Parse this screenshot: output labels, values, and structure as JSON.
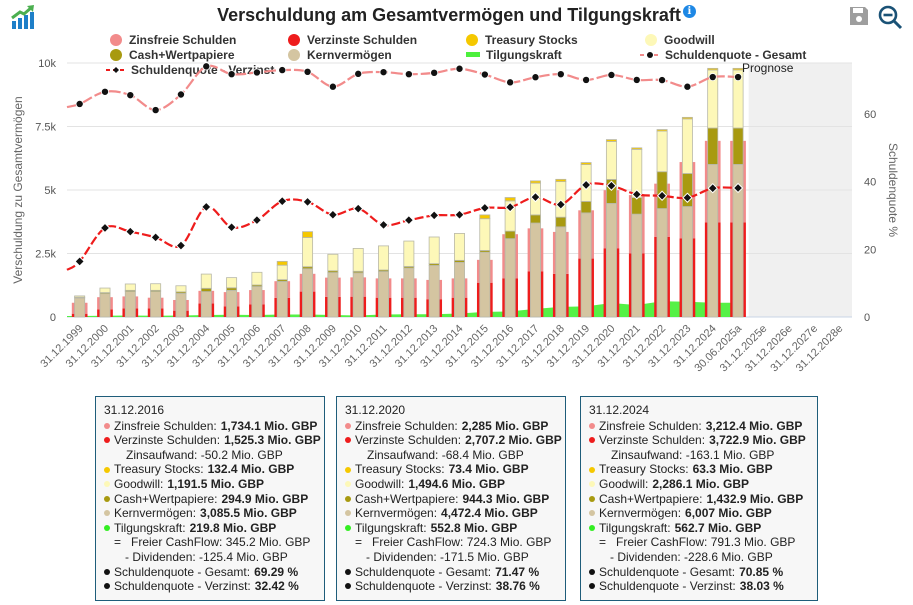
{
  "header": {
    "title": "Verschuldung am Gesamtvermögen und Tilgungskraft",
    "info_icon": "info-icon",
    "save_icon": "save-icon",
    "zoom_out_icon": "zoom-out-icon",
    "logo_icon": "chart-growth-logo-icon"
  },
  "legend": [
    {
      "label": "Zinsfreie Schulden",
      "color": "#f28b8b",
      "shape": "dot"
    },
    {
      "label": "Verzinste Schulden",
      "color": "#ee1c1c",
      "shape": "dot"
    },
    {
      "label": "Treasury Stocks",
      "color": "#f5c800",
      "shape": "dot"
    },
    {
      "label": "Goodwill",
      "color": "#fdf8b8",
      "shape": "dot"
    },
    {
      "label": "Cash+Wertpapiere",
      "color": "#a89a10",
      "shape": "dot"
    },
    {
      "label": "Kernvermögen",
      "color": "#d4c5a1",
      "shape": "dot"
    },
    {
      "label": "Tilgungskraft",
      "color": "#4cf03c",
      "shape": "bar"
    },
    {
      "label": "Schuldenquote - Gesamt",
      "color": "#f28b8b",
      "shape": "line"
    },
    {
      "label": "Schuldenquote - Verzinst",
      "color": "#ee1c1c",
      "shape": "line"
    }
  ],
  "chart_data": {
    "type": "bar",
    "title": "Verschuldung am Gesamtvermögen und Tilgungskraft",
    "xlabel": "",
    "ylabel": "Verschuldung zu Gesamtvermögen",
    "y2label": "Schuldenquote %",
    "ylim": [
      0,
      10000
    ],
    "y2lim": [
      0,
      75
    ],
    "yticks": [
      "0",
      "2.5k",
      "5k",
      "7.5k",
      "10k"
    ],
    "y2ticks": [
      "0",
      "20",
      "40",
      "60"
    ],
    "grid": true,
    "forecast_label": "Prognose",
    "categories": [
      "31.12.1999",
      "31.12.2000",
      "31.12.2001",
      "31.12.2002",
      "31.12.2003",
      "31.12.2004",
      "31.12.2005",
      "31.12.2006",
      "31.12.2007",
      "31.12.2008",
      "31.12.2009",
      "31.12.2010",
      "31.12.2011",
      "31.12.2012",
      "31.12.2013",
      "31.12.2014",
      "31.12.2015",
      "31.12.2016",
      "31.12.2017",
      "31.12.2018",
      "31.12.2019",
      "31.12.2020",
      "31.12.2021",
      "31.12.2022",
      "31.12.2023",
      "31.12.2024",
      "30.06.2025a",
      "31.12.2025e",
      "31.12.2026e",
      "31.12.2027e",
      "31.12.2028e"
    ],
    "series": [
      {
        "name": "Zinsfreie Schulden",
        "kind": "bar-left",
        "values": [
          430,
          480,
          470,
          420,
          420,
          500,
          560,
          560,
          660,
          700,
          760,
          760,
          760,
          760,
          760,
          760,
          900,
          1734.1,
          1690,
          1650,
          1900,
          2285,
          2300,
          2100,
          3000,
          3212.4,
          3212.4,
          null,
          null,
          null,
          null
        ]
      },
      {
        "name": "Verzinste Schulden",
        "kind": "bar-left-bottom",
        "values": [
          130,
          300,
          340,
          340,
          250,
          530,
          420,
          500,
          750,
          1000,
          790,
          800,
          760,
          760,
          700,
          760,
          1350,
          1525.3,
          1800,
          1700,
          2300,
          2707.2,
          2500,
          3150,
          3100,
          3722.9,
          3722.9,
          null,
          null,
          null,
          null
        ]
      },
      {
        "name": "Kernvermögen",
        "kind": "stack",
        "values": [
          750,
          920,
          1000,
          1000,
          930,
          1000,
          1050,
          1200,
          1400,
          1900,
          1750,
          1740,
          1790,
          1930,
          2030,
          2150,
          2550,
          3085.5,
          3700,
          3550,
          4100,
          4472.4,
          4050,
          4270,
          4350,
          6007,
          6007,
          null,
          null,
          null,
          null
        ]
      },
      {
        "name": "Cash+Wertpapiere",
        "kind": "stack",
        "values": [
          30,
          40,
          50,
          50,
          60,
          130,
          100,
          60,
          70,
          80,
          70,
          60,
          60,
          60,
          70,
          80,
          70,
          294.9,
          320,
          380,
          450,
          944.3,
          650,
          1450,
          1300,
          1432.9,
          1432.9,
          null,
          null,
          null,
          null
        ]
      },
      {
        "name": "Goodwill",
        "kind": "stack",
        "values": [
          50,
          180,
          250,
          260,
          240,
          560,
          400,
          500,
          570,
          1150,
          650,
          900,
          950,
          1000,
          1050,
          1060,
          1250,
          1191.5,
          1250,
          1400,
          1450,
          1494.6,
          1900,
          1600,
          2150,
          2286.1,
          2286.1,
          null,
          null,
          null,
          null
        ]
      },
      {
        "name": "Treasury Stocks",
        "kind": "stack",
        "values": [
          0,
          0,
          0,
          0,
          0,
          0,
          0,
          0,
          150,
          230,
          0,
          0,
          0,
          0,
          0,
          0,
          150,
          132.4,
          90,
          90,
          80,
          73.4,
          60,
          60,
          60,
          63.3,
          63.3,
          null,
          null,
          null,
          null
        ]
      },
      {
        "name": "Tilgungskraft",
        "kind": "area",
        "values": [
          40,
          50,
          60,
          50,
          60,
          80,
          90,
          80,
          100,
          100,
          80,
          60,
          100,
          110,
          110,
          140,
          200,
          219.8,
          320,
          400,
          420,
          552.8,
          470,
          620,
          600,
          562.7,
          562.7,
          null,
          null,
          null,
          null
        ]
      },
      {
        "name": "Schuldenquote - Gesamt",
        "kind": "line-y2",
        "values": [
          62.9,
          66.5,
          65.5,
          61.1,
          65.7,
          74.0,
          71.7,
          72.2,
          72.9,
          72.4,
          68.0,
          71.8,
          72.3,
          71.7,
          72.1,
          73.3,
          71.6,
          69.29,
          70.8,
          71.7,
          70.0,
          71.47,
          70.0,
          69.95,
          68.0,
          70.85,
          70.85,
          null,
          null,
          null,
          null
        ]
      },
      {
        "name": "Schuldenquote - Verzinst",
        "kind": "line-y2",
        "values": [
          16.4,
          26.3,
          25.2,
          23.5,
          21.1,
          32.5,
          26.5,
          28.6,
          34.2,
          34.0,
          30.2,
          32.0,
          27.2,
          28.6,
          30.0,
          30.2,
          32.2,
          32.42,
          35.4,
          33.2,
          39.0,
          38.76,
          36.2,
          35.8,
          35.2,
          38.03,
          38.1,
          null,
          null,
          null,
          null
        ]
      }
    ]
  },
  "tooltips": [
    {
      "date": "31.12.2016",
      "rows": [
        {
          "label": "Zinsfreie Schulden:",
          "value": "1,734.1 Mio. GBP",
          "color": "#f28b8b"
        },
        {
          "label": "Verzinste Schulden:",
          "value": "1,525.3 Mio. GBP",
          "color": "#ee1c1c"
        },
        {
          "label": "Zinsaufwand: -50.2 Mio. GBP",
          "value": "",
          "color": "",
          "indent": "ind"
        },
        {
          "label": "Treasury Stocks:",
          "value": "132.4 Mio. GBP",
          "color": "#f5c800"
        },
        {
          "label": "Goodwill:",
          "value": "1,191.5 Mio. GBP",
          "color": "#fdf8b8"
        },
        {
          "label": "Cash+Wertpapiere:",
          "value": "294.9 Mio. GBP",
          "color": "#a89a10"
        },
        {
          "label": "Kernvermögen:",
          "value": "3,085.5 Mio. GBP",
          "color": "#d4c5a1"
        },
        {
          "label": "Tilgungskraft:",
          "value": "219.8 Mio. GBP",
          "color": "#33ee22"
        },
        {
          "label": "=   Freier CashFlow: 345.2 Mio. GBP",
          "value": "",
          "color": "",
          "indent": "ind2"
        },
        {
          "label": "- Dividenden: -125.4 Mio. GBP",
          "value": "",
          "color": "",
          "indent": "ind3"
        },
        {
          "label": "Schuldenquote - Gesamt:",
          "value": "69.29 %",
          "color": "#111"
        },
        {
          "label": "Schuldenquote - Verzinst:",
          "value": "32.42 %",
          "color": "#111"
        }
      ]
    },
    {
      "date": "31.12.2020",
      "rows": [
        {
          "label": "Zinsfreie Schulden:",
          "value": "2,285 Mio. GBP",
          "color": "#f28b8b"
        },
        {
          "label": "Verzinste Schulden:",
          "value": "2,707.2 Mio. GBP",
          "color": "#ee1c1c"
        },
        {
          "label": "Zinsaufwand: -68.4 Mio. GBP",
          "value": "",
          "color": "",
          "indent": "ind"
        },
        {
          "label": "Treasury Stocks:",
          "value": "73.4 Mio. GBP",
          "color": "#f5c800"
        },
        {
          "label": "Goodwill:",
          "value": "1,494.6 Mio. GBP",
          "color": "#fdf8b8"
        },
        {
          "label": "Cash+Wertpapiere:",
          "value": "944.3 Mio. GBP",
          "color": "#a89a10"
        },
        {
          "label": "Kernvermögen:",
          "value": "4,472.4 Mio. GBP",
          "color": "#d4c5a1"
        },
        {
          "label": "Tilgungskraft:",
          "value": "552.8 Mio. GBP",
          "color": "#33ee22"
        },
        {
          "label": "=   Freier CashFlow: 724.3 Mio. GBP",
          "value": "",
          "color": "",
          "indent": "ind2"
        },
        {
          "label": "- Dividenden: -171.5 Mio. GBP",
          "value": "",
          "color": "",
          "indent": "ind3"
        },
        {
          "label": "Schuldenquote - Gesamt:",
          "value": "71.47 %",
          "color": "#111"
        },
        {
          "label": "Schuldenquote - Verzinst:",
          "value": "38.76 %",
          "color": "#111"
        }
      ]
    },
    {
      "date": "31.12.2024",
      "rows": [
        {
          "label": "Zinsfreie Schulden:",
          "value": "3,212.4 Mio. GBP",
          "color": "#f28b8b"
        },
        {
          "label": "Verzinste Schulden:",
          "value": "3,722.9 Mio. GBP",
          "color": "#ee1c1c"
        },
        {
          "label": "Zinsaufwand: -163.1 Mio. GBP",
          "value": "",
          "color": "",
          "indent": "ind"
        },
        {
          "label": "Treasury Stocks:",
          "value": "63.3 Mio. GBP",
          "color": "#f5c800"
        },
        {
          "label": "Goodwill:",
          "value": "2,286.1 Mio. GBP",
          "color": "#fdf8b8"
        },
        {
          "label": "Cash+Wertpapiere:",
          "value": "1,432.9 Mio. GBP",
          "color": "#a89a10"
        },
        {
          "label": "Kernvermögen:",
          "value": "6,007 Mio. GBP",
          "color": "#d4c5a1"
        },
        {
          "label": "Tilgungskraft:",
          "value": "562.7 Mio. GBP",
          "color": "#33ee22"
        },
        {
          "label": "=   Freier CashFlow: 791.3 Mio. GBP",
          "value": "",
          "color": "",
          "indent": "ind2"
        },
        {
          "label": "- Dividenden: -228.6 Mio. GBP",
          "value": "",
          "color": "",
          "indent": "ind3"
        },
        {
          "label": "Schuldenquote - Gesamt:",
          "value": "70.85 %",
          "color": "#111"
        },
        {
          "label": "Schuldenquote - Verzinst:",
          "value": "38.03 %",
          "color": "#111"
        }
      ]
    }
  ]
}
